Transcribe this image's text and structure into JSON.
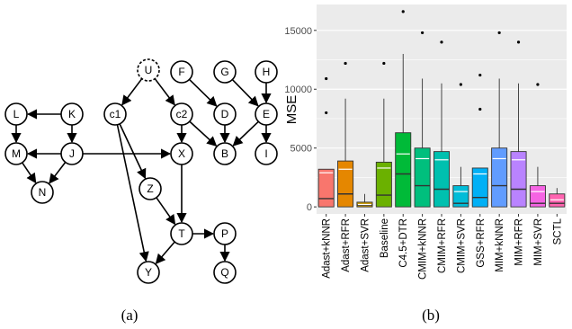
{
  "captions": {
    "a": "(a)",
    "b": "(b)"
  },
  "graph": {
    "nodes": [
      {
        "id": "U",
        "label": "U",
        "style": "latent"
      },
      {
        "id": "F",
        "label": "F"
      },
      {
        "id": "G",
        "label": "G"
      },
      {
        "id": "H",
        "label": "H"
      },
      {
        "id": "L",
        "label": "L"
      },
      {
        "id": "K",
        "label": "K"
      },
      {
        "id": "c1",
        "label": "c1"
      },
      {
        "id": "c2",
        "label": "c2"
      },
      {
        "id": "D",
        "label": "D"
      },
      {
        "id": "E",
        "label": "E"
      },
      {
        "id": "M",
        "label": "M"
      },
      {
        "id": "J",
        "label": "J"
      },
      {
        "id": "X",
        "label": "X"
      },
      {
        "id": "B",
        "label": "B"
      },
      {
        "id": "I",
        "label": "I"
      },
      {
        "id": "N",
        "label": "N"
      },
      {
        "id": "Z",
        "label": "Z"
      },
      {
        "id": "T",
        "label": "T",
        "style": "highlight"
      },
      {
        "id": "P",
        "label": "P"
      },
      {
        "id": "Y",
        "label": "Y"
      },
      {
        "id": "Q",
        "label": "Q"
      }
    ],
    "edges": [
      [
        "U",
        "c1"
      ],
      [
        "U",
        "c2"
      ],
      [
        "K",
        "L"
      ],
      [
        "K",
        "J"
      ],
      [
        "L",
        "M"
      ],
      [
        "M",
        "N"
      ],
      [
        "J",
        "M"
      ],
      [
        "J",
        "N"
      ],
      [
        "J",
        "X"
      ],
      [
        "c1",
        "Z"
      ],
      [
        "c1",
        "Y"
      ],
      [
        "c2",
        "X"
      ],
      [
        "c2",
        "B"
      ],
      [
        "F",
        "D"
      ],
      [
        "G",
        "E"
      ],
      [
        "H",
        "E"
      ],
      [
        "D",
        "B"
      ],
      [
        "E",
        "B"
      ],
      [
        "E",
        "I"
      ],
      [
        "X",
        "T"
      ],
      [
        "Z",
        "T"
      ],
      [
        "T",
        "P"
      ],
      [
        "T",
        "Y"
      ],
      [
        "P",
        "Q"
      ]
    ],
    "colors": {
      "latent": "#c8c8c8",
      "highlight": "#f5b742",
      "edge": "#000000"
    }
  },
  "chart_data": {
    "type": "box",
    "ylabel": "MSE",
    "yticks": [
      0,
      5000,
      10000,
      15000
    ],
    "ytick_labels": [
      "0",
      "5000",
      "10000",
      "15000"
    ],
    "ylim": [
      -600,
      17200
    ],
    "grid": true,
    "categories": [
      "Adast+kNNR",
      "Adast+RFR",
      "Adast+SVR",
      "Baseline",
      "C4.5+DTR",
      "CMIM+kNNR",
      "CMIM+RFR",
      "CMIM+SVR",
      "GSS+RFR",
      "MIM+kNNR",
      "MIM+RFR",
      "MIM+SVR",
      "SCTL"
    ],
    "boxes": [
      {
        "q1": 0,
        "median": 700,
        "mean": 2900,
        "q3": 3200,
        "whisker_low": 0,
        "whisker_high": 3200,
        "outliers": [
          8000,
          10900
        ],
        "color": "#f8766d"
      },
      {
        "q1": 0,
        "median": 1100,
        "mean": 3200,
        "q3": 3900,
        "whisker_low": 0,
        "whisker_high": 9200,
        "outliers": [
          12200
        ],
        "color": "#e58700"
      },
      {
        "q1": 0,
        "median": 150,
        "mean": 200,
        "q3": 400,
        "whisker_low": 0,
        "whisker_high": 1100,
        "outliers": [],
        "color": "#c99800"
      },
      {
        "q1": 0,
        "median": 1000,
        "mean": 3300,
        "q3": 3800,
        "whisker_low": 0,
        "whisker_high": 9200,
        "outliers": [
          12200
        ],
        "color": "#6bb100"
      },
      {
        "q1": 0,
        "median": 2800,
        "mean": 4500,
        "q3": 6300,
        "whisker_low": 0,
        "whisker_high": 13000,
        "outliers": [
          16600
        ],
        "color": "#00ba38"
      },
      {
        "q1": 0,
        "median": 1800,
        "mean": 4100,
        "q3": 5000,
        "whisker_low": 0,
        "whisker_high": 10900,
        "outliers": [
          14800
        ],
        "color": "#00bf7d"
      },
      {
        "q1": 0,
        "median": 1500,
        "mean": 4000,
        "q3": 4700,
        "whisker_low": 0,
        "whisker_high": 10500,
        "outliers": [
          14000
        ],
        "color": "#00c0af"
      },
      {
        "q1": 0,
        "median": 300,
        "mean": 1300,
        "q3": 1800,
        "whisker_low": 0,
        "whisker_high": 3400,
        "outliers": [
          10400
        ],
        "color": "#00bcd8"
      },
      {
        "q1": 0,
        "median": 800,
        "mean": 2800,
        "q3": 3300,
        "whisker_low": 0,
        "whisker_high": 3300,
        "outliers": [
          8300,
          11200
        ],
        "color": "#00b0f6"
      },
      {
        "q1": 0,
        "median": 1800,
        "mean": 4100,
        "q3": 5000,
        "whisker_low": 0,
        "whisker_high": 10900,
        "outliers": [
          14800
        ],
        "color": "#619cff"
      },
      {
        "q1": 0,
        "median": 1500,
        "mean": 4000,
        "q3": 4700,
        "whisker_low": 0,
        "whisker_high": 10500,
        "outliers": [
          14000
        ],
        "color": "#b983ff"
      },
      {
        "q1": 0,
        "median": 300,
        "mean": 1300,
        "q3": 1800,
        "whisker_low": 0,
        "whisker_high": 3400,
        "outliers": [
          10400
        ],
        "color": "#f564e3"
      },
      {
        "q1": 0,
        "median": 300,
        "mean": 600,
        "q3": 1100,
        "whisker_low": 0,
        "whisker_high": 1600,
        "outliers": [],
        "color": "#ff64b0"
      }
    ],
    "panel_background": "#ebebeb",
    "grid_color": "#ffffff",
    "outlier_color": "#000000"
  }
}
